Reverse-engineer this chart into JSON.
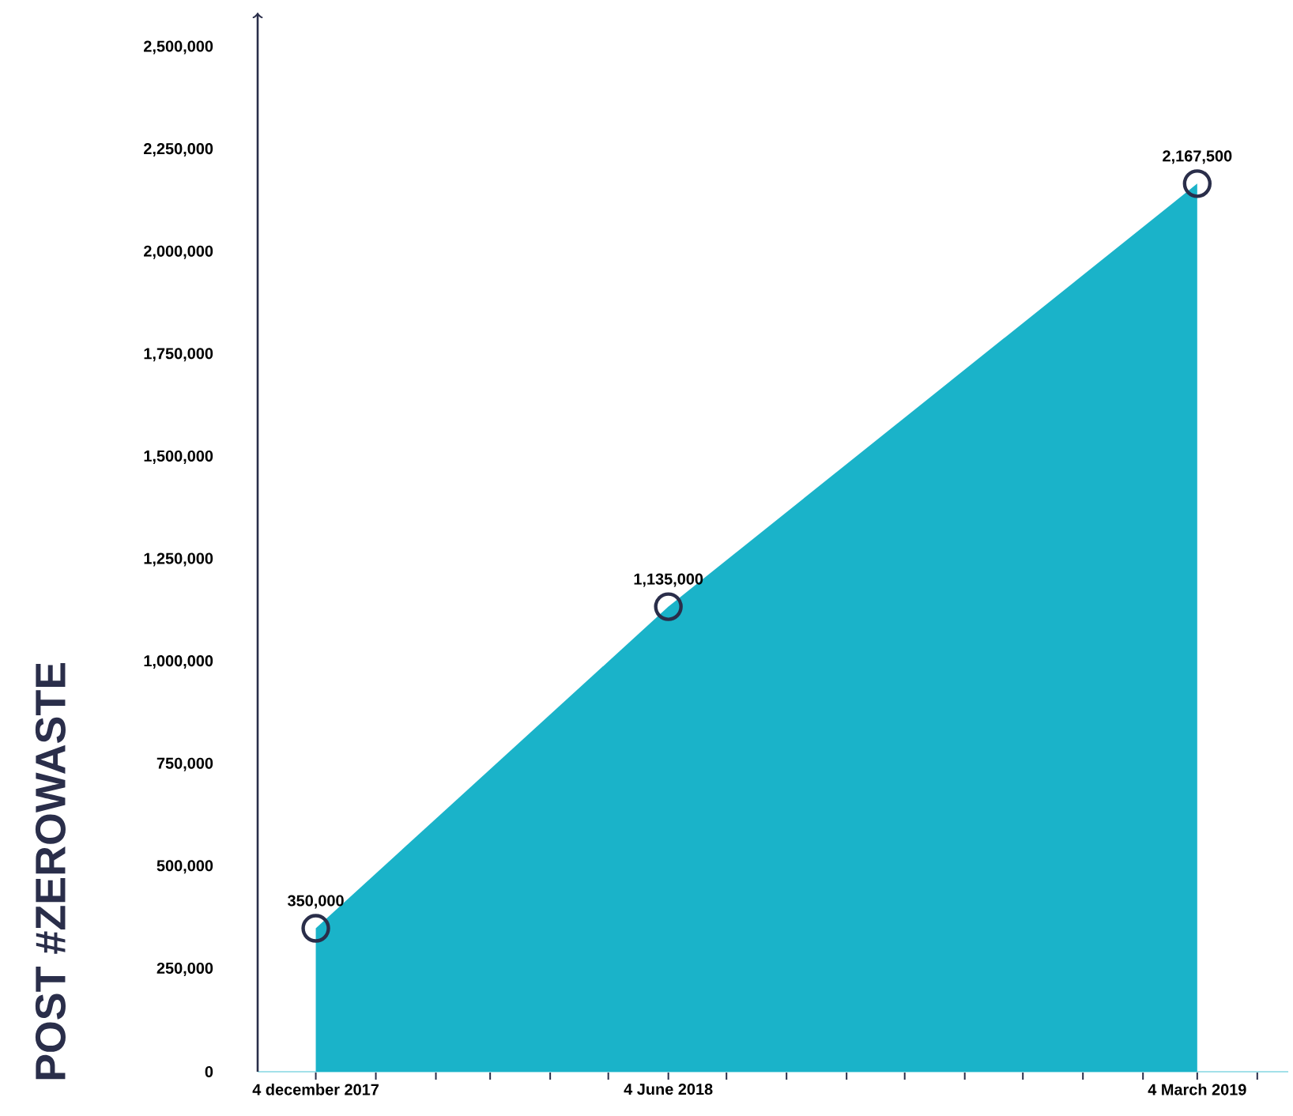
{
  "chart_data": {
    "type": "area",
    "ylabel": "POST #ZEROWASTE",
    "x": [
      "2017-12-04",
      "2018-06-04",
      "2019-03-04"
    ],
    "values": [
      350000,
      1135000,
      2167500
    ],
    "value_labels": [
      "350,000",
      "1,135,000",
      "2,167,500"
    ],
    "color": "#1ab3c9",
    "marker": "circle",
    "xlim": [
      "2017-11-04",
      "2019-04-20"
    ],
    "xticks": [
      {
        "value": "2017-12-04",
        "label": "4 december 2017"
      },
      {
        "value": "2018-01-04",
        "label": null
      },
      {
        "value": "2018-02-04",
        "label": null
      },
      {
        "value": "2018-03-04",
        "label": null
      },
      {
        "value": "2018-04-04",
        "label": null
      },
      {
        "value": "2018-05-04",
        "label": null
      },
      {
        "value": "2018-06-04",
        "label": "4 June 2018"
      },
      {
        "value": "2018-07-04",
        "label": null
      },
      {
        "value": "2018-08-04",
        "label": null
      },
      {
        "value": "2018-09-04",
        "label": null
      },
      {
        "value": "2018-10-04",
        "label": null
      },
      {
        "value": "2018-11-04",
        "label": null
      },
      {
        "value": "2018-12-04",
        "label": null
      },
      {
        "value": "2019-01-04",
        "label": null
      },
      {
        "value": "2019-02-04",
        "label": null
      },
      {
        "value": "2019-03-04",
        "label": "4 March 2019"
      },
      {
        "value": "2019-04-04",
        "label": null
      }
    ],
    "ylim": [
      0,
      2500000
    ],
    "yticks": [
      0,
      {
        "value": 250000,
        "label": "250,000"
      },
      {
        "value": 500000,
        "label": "500,000"
      },
      {
        "value": 750000,
        "label": "750,000"
      },
      {
        "value": 1000000,
        "label": "1,000,000"
      },
      {
        "value": 1250000,
        "label": "1,250,000"
      },
      {
        "value": 1500000,
        "label": "1,500,000"
      },
      {
        "value": 1750000,
        "label": "1,750,000"
      },
      {
        "value": 2000000,
        "label": "2,000,000"
      },
      {
        "value": 2250000,
        "label": "2,250,000"
      },
      {
        "value": 2500000,
        "label": "2,500,000"
      }
    ],
    "grid": false
  }
}
